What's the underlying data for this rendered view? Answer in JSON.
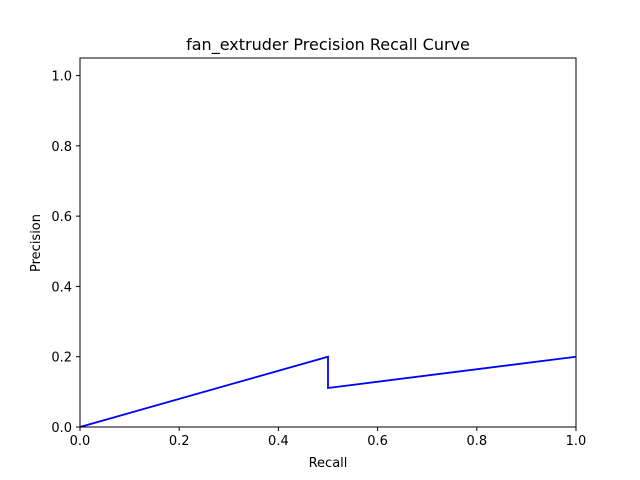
{
  "chart_data": {
    "type": "line",
    "title": "fan_extruder Precision Recall Curve",
    "xlabel": "Recall",
    "ylabel": "Precision",
    "xlim": [
      0.0,
      1.0
    ],
    "ylim": [
      0.0,
      1.05
    ],
    "grid": false,
    "x_ticks": [
      "0.0",
      "0.2",
      "0.4",
      "0.6",
      "0.8",
      "1.0"
    ],
    "y_ticks": [
      "0.0",
      "0.2",
      "0.4",
      "0.6",
      "0.8",
      "1.0"
    ],
    "series": [
      {
        "color": "#0000ff",
        "x": [
          0.0,
          0.5,
          0.5,
          1.0
        ],
        "y": [
          0.0,
          0.2,
          0.111,
          0.2
        ]
      }
    ]
  }
}
